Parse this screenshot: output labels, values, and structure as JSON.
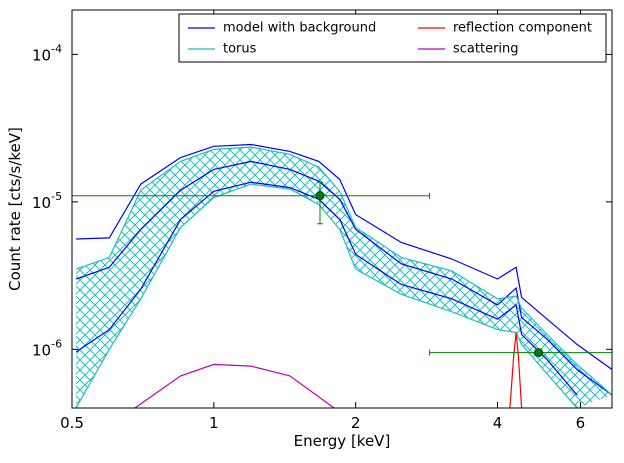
{
  "chart_data": {
    "type": "line",
    "xlabel": "Energy [keV]",
    "ylabel": "Count rate [cts/s/keV]",
    "xscale": "log",
    "yscale": "log",
    "xlim": [
      0.5,
      7.0
    ],
    "ylim": [
      4e-07,
      0.0002
    ],
    "xticks": [
      0.5,
      1,
      2,
      4,
      6
    ],
    "yticks": [
      {
        "value": 1e-06,
        "label": "10",
        "exponent": "-6"
      },
      {
        "value": 1e-05,
        "label": "10",
        "exponent": "-5"
      },
      {
        "value": 0.0001,
        "label": "10",
        "exponent": "-4"
      }
    ],
    "legend": "upper right",
    "legend_columns": 2,
    "x": [
      0.51,
      0.6,
      0.7,
      0.85,
      1.0,
      1.2,
      1.45,
      1.67,
      1.85,
      2.0,
      2.5,
      3.2,
      4.0,
      4.38,
      4.5,
      5.1,
      5.9,
      7.0
    ],
    "series": [
      {
        "name": "model with background",
        "color": "#0000ff",
        "lines": [
          [
            5.6e-06,
            5.7e-06,
            1.32e-05,
            2e-05,
            2.38e-05,
            2.45e-05,
            2.2e-05,
            1.88e-05,
            1.42e-05,
            8.2e-06,
            5.3e-06,
            4.1e-06,
            3e-06,
            3.6e-06,
            2.25e-06,
            1.6e-06,
            1.08e-06,
            7.3e-07
          ],
          [
            3e-06,
            3.6e-06,
            6.5e-06,
            1.2e-05,
            1.66e-05,
            1.88e-05,
            1.66e-05,
            1.38e-05,
            1.04e-05,
            6.5e-06,
            3.8e-06,
            3e-06,
            2e-06,
            2.6e-06,
            1.64e-06,
            1.17e-06,
            7.3e-07,
            4.9e-07
          ],
          [
            9.6e-07,
            1.36e-06,
            2.56e-06,
            7.6e-06,
            1.18e-05,
            1.36e-05,
            1.25e-05,
            1.04e-05,
            7.6e-06,
            4.4e-06,
            2.75e-06,
            2.2e-06,
            1.6e-06,
            2e-06,
            1.26e-06,
            8.5e-07,
            4.9e-07,
            null
          ]
        ]
      },
      {
        "name": "torus",
        "color": "#1fbfbf",
        "hatch": true,
        "lines": [
          [
            3.5e-06,
            4.2e-06,
            1.2e-05,
            1.88e-05,
            2.27e-05,
            2.35e-05,
            2.1e-05,
            1.72e-05,
            1.18e-05,
            6.7e-06,
            4.2e-06,
            3.4e-06,
            2.2e-06,
            2.3e-06,
            1.9e-06,
            1.26e-06,
            7.9e-07,
            4.9e-07
          ],
          [
            4e-07,
            1e-06,
            2.2e-06,
            6.7e-06,
            1.07e-05,
            1.32e-05,
            1.22e-05,
            9.6e-06,
            6.5e-06,
            3.5e-06,
            2.36e-06,
            1.8e-06,
            1.36e-06,
            1.3e-06,
            1.08e-06,
            6.8e-07,
            4e-07,
            null
          ]
        ]
      },
      {
        "name": "reflection component",
        "color": "#ff0000",
        "x": [
          4.25,
          4.33,
          4.38,
          4.43,
          4.5
        ],
        "lines": [
          [
            4e-07,
            9e-07,
            1.3e-06,
            9e-07,
            4e-07
          ]
        ]
      },
      {
        "name": "scattering",
        "color": "#bf00bf",
        "x": [
          0.68,
          0.85,
          1.0,
          1.2,
          1.45,
          1.8
        ],
        "lines": [
          [
            4e-07,
            6.6e-07,
            7.9e-07,
            7.7e-07,
            6.6e-07,
            4e-07
          ]
        ]
      }
    ],
    "points": {
      "color": "#008000",
      "data": [
        {
          "x": 1.68,
          "y": 1.1e-05,
          "xerr": [
            0.5,
            2.87
          ],
          "yerr": [
            7.1e-06,
            1.36e-05
          ]
        },
        {
          "x": 4.89,
          "y": 9.5e-07,
          "xerr": [
            2.87,
            7.0
          ],
          "yerr": [
            9.2e-07,
            9.8e-07
          ]
        }
      ]
    }
  }
}
